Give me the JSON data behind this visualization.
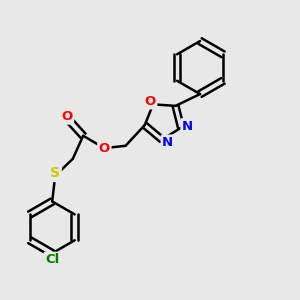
{
  "background_color": "#e8e8e8",
  "bond_color": "#000000",
  "bond_width": 1.8,
  "atom_colors": {
    "O": "#ff0000",
    "N": "#0000ff",
    "S": "#cccc00",
    "Cl": "#008000",
    "C": "#000000"
  },
  "font_size": 9.5,
  "figsize": [
    3.0,
    3.0
  ],
  "dpi": 100
}
